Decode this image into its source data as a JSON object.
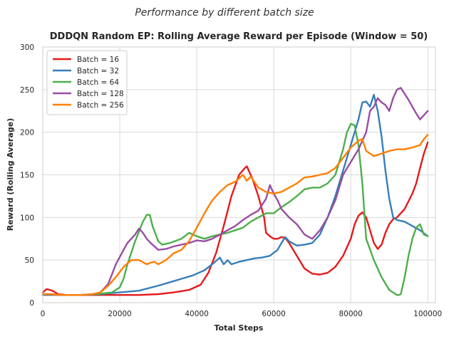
{
  "chart_data": {
    "type": "line",
    "suptitle": "Performance by different batch size",
    "title": "DDDQN Random EP: Rolling Average Reward per Episode (Window = 50)",
    "xlabel": "Total Steps",
    "ylabel": "Reward (Rolling Average)",
    "xlim": [
      0,
      102000
    ],
    "ylim": [
      0,
      300
    ],
    "xticks": [
      0,
      20000,
      40000,
      60000,
      80000,
      100000
    ],
    "xtick_labels": [
      "0",
      "20000",
      "40000",
      "60000",
      "80000",
      "100000"
    ],
    "yticks": [
      0,
      50,
      100,
      150,
      200,
      250,
      300
    ],
    "ytick_labels": [
      "0",
      "50",
      "100",
      "150",
      "200",
      "250",
      "300"
    ],
    "grid": true,
    "legend_position": "top-left",
    "series": [
      {
        "name": "Batch = 16",
        "color": "#e41a1c",
        "x": [
          0,
          1000,
          2500,
          4000,
          6000,
          10000,
          15000,
          20000,
          25000,
          30000,
          34000,
          38000,
          41000,
          43000,
          45000,
          47000,
          49000,
          51000,
          52500,
          53000,
          53500,
          54500,
          56000,
          57500,
          58000,
          59000,
          60000,
          61000,
          62000,
          63000,
          64000,
          66000,
          68000,
          70000,
          72000,
          74000,
          76000,
          78000,
          80000,
          81000,
          82000,
          83000,
          84000,
          85000,
          86000,
          87000,
          88000,
          89000,
          90000,
          91000,
          92000,
          94000,
          96000,
          97000,
          98000,
          99000,
          100000
        ],
        "y": [
          12,
          16,
          14,
          10,
          9,
          9,
          9,
          9,
          9,
          10,
          12,
          15,
          21,
          35,
          58,
          90,
          125,
          150,
          158,
          160,
          155,
          145,
          125,
          100,
          82,
          78,
          75,
          75,
          77,
          76,
          70,
          55,
          40,
          34,
          33,
          35,
          42,
          55,
          75,
          92,
          102,
          106,
          100,
          85,
          70,
          63,
          68,
          82,
          92,
          98,
          100,
          110,
          128,
          140,
          158,
          175,
          188
        ]
      },
      {
        "name": "Batch = 32",
        "color": "#377eb8",
        "x": [
          0,
          2500,
          5000,
          10000,
          15000,
          20000,
          25000,
          30000,
          33000,
          36000,
          39000,
          42000,
          44000,
          46000,
          47000,
          48000,
          49000,
          51000,
          53000,
          55000,
          57000,
          59000,
          61000,
          62000,
          63000,
          64000,
          66000,
          68000,
          70000,
          72000,
          74000,
          76000,
          78000,
          80000,
          82000,
          83000,
          84000,
          85000,
          86000,
          87000,
          88000,
          89000,
          90000,
          91000,
          92000,
          94000,
          96000,
          98000,
          100000
        ],
        "y": [
          9,
          9,
          9,
          9,
          10,
          12,
          14,
          20,
          24,
          28,
          32,
          38,
          45,
          53,
          45,
          50,
          45,
          48,
          50,
          52,
          53,
          55,
          62,
          70,
          77,
          72,
          67,
          68,
          70,
          80,
          100,
          125,
          155,
          185,
          215,
          235,
          236,
          230,
          244,
          225,
          195,
          155,
          122,
          100,
          97,
          95,
          90,
          85,
          78
        ]
      },
      {
        "name": "Batch = 64",
        "color": "#4daf4a",
        "x": [
          0,
          5000,
          10000,
          14000,
          18000,
          20000,
          21000,
          22000,
          24000,
          26000,
          27000,
          27800,
          28500,
          30000,
          31000,
          33000,
          36000,
          38000,
          40000,
          42000,
          44000,
          46000,
          48000,
          50000,
          52000,
          54000,
          56000,
          58000,
          60000,
          62000,
          64000,
          66000,
          68000,
          70000,
          72000,
          74000,
          76000,
          78000,
          79000,
          80000,
          81000,
          82000,
          83000,
          84000,
          86000,
          88000,
          90000,
          92000,
          92500,
          93000,
          94000,
          95000,
          96000,
          97000,
          98000,
          99000,
          100000
        ],
        "y": [
          10,
          9,
          9,
          10,
          12,
          18,
          28,
          45,
          72,
          95,
          103,
          103,
          90,
          72,
          68,
          70,
          75,
          82,
          78,
          75,
          78,
          80,
          82,
          85,
          88,
          95,
          100,
          105,
          105,
          112,
          118,
          125,
          133,
          135,
          135,
          140,
          150,
          180,
          200,
          210,
          208,
          185,
          140,
          75,
          50,
          30,
          15,
          9,
          9,
          10,
          30,
          55,
          75,
          88,
          92,
          80,
          78
        ]
      },
      {
        "name": "Batch = 128",
        "color": "#984ea3",
        "x": [
          0,
          5000,
          10000,
          13000,
          15000,
          17000,
          19000,
          21000,
          22000,
          24000,
          25000,
          26000,
          27000,
          28000,
          30000,
          32000,
          34000,
          36000,
          38000,
          40000,
          42000,
          44000,
          46000,
          48000,
          50000,
          52000,
          54000,
          56000,
          58000,
          59000,
          60000,
          61000,
          62000,
          64000,
          66000,
          68000,
          70000,
          72000,
          74000,
          76000,
          78000,
          80000,
          82000,
          84000,
          85000,
          86000,
          87000,
          88000,
          89000,
          90000,
          91000,
          92000,
          93000,
          94000,
          95000,
          96000,
          97000,
          98000,
          99000,
          100000
        ],
        "y": [
          10,
          9,
          9,
          10,
          12,
          22,
          45,
          62,
          70,
          80,
          87,
          82,
          75,
          70,
          62,
          63,
          66,
          68,
          70,
          73,
          72,
          75,
          80,
          85,
          90,
          97,
          103,
          108,
          122,
          138,
          128,
          120,
          110,
          100,
          92,
          80,
          75,
          85,
          100,
          120,
          150,
          165,
          180,
          200,
          225,
          230,
          240,
          235,
          232,
          225,
          240,
          250,
          252,
          245,
          238,
          230,
          222,
          215,
          220,
          225
        ]
      },
      {
        "name": "Batch = 256",
        "color": "#ff7f00",
        "x": [
          0,
          2000,
          5000,
          10000,
          13000,
          15000,
          17000,
          19000,
          21000,
          23000,
          25000,
          27000,
          28000,
          29000,
          30000,
          32000,
          34000,
          36000,
          38000,
          40000,
          42000,
          44000,
          46000,
          48000,
          50000,
          52000,
          53000,
          54000,
          56000,
          58000,
          60000,
          62000,
          64000,
          66000,
          68000,
          70000,
          72000,
          74000,
          76000,
          78000,
          80000,
          82000,
          83000,
          84000,
          86000,
          88000,
          90000,
          92000,
          94000,
          96000,
          98000,
          99000,
          100000
        ],
        "y": [
          10,
          10,
          9,
          9,
          10,
          12,
          20,
          30,
          42,
          50,
          50,
          45,
          47,
          48,
          45,
          50,
          58,
          62,
          72,
          88,
          105,
          120,
          130,
          138,
          142,
          150,
          143,
          148,
          135,
          130,
          128,
          130,
          135,
          140,
          147,
          148,
          150,
          152,
          158,
          170,
          182,
          190,
          192,
          178,
          172,
          175,
          178,
          180,
          180,
          182,
          185,
          192,
          197
        ]
      }
    ]
  }
}
